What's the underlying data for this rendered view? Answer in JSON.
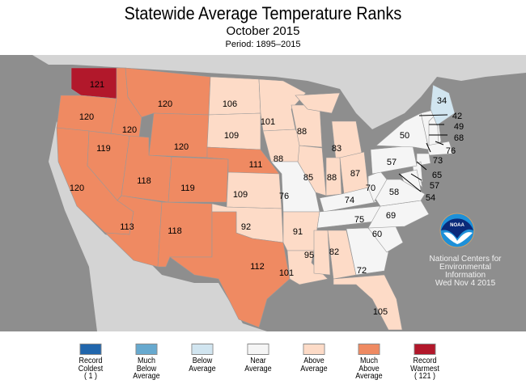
{
  "title": "Statewide Average Temperature Ranks",
  "subtitle": "October 2015",
  "period": "Period: 1895–2015",
  "colors": {
    "ocean": "#8e8e8e",
    "land": "#d4d4d4",
    "record_cold": "#2166ac",
    "much_below": "#67a9cf",
    "below": "#d1e5f0",
    "near": "#f5f5f5",
    "above": "#fddbc7",
    "much_above": "#ef8a62",
    "record_warm": "#b2182b"
  },
  "states": [
    {
      "rank": "121",
      "cat": "record_warm"
    },
    {
      "rank": "120",
      "cat": "much_above"
    },
    {
      "rank": "120",
      "cat": "much_above"
    },
    {
      "rank": "119",
      "cat": "much_above"
    },
    {
      "rank": "120",
      "cat": "much_above"
    },
    {
      "rank": "120",
      "cat": "much_above"
    },
    {
      "rank": "120",
      "cat": "much_above"
    },
    {
      "rank": "118",
      "cat": "much_above"
    },
    {
      "rank": "119",
      "cat": "much_above"
    },
    {
      "rank": "113",
      "cat": "much_above"
    },
    {
      "rank": "118",
      "cat": "much_above"
    },
    {
      "rank": "106",
      "cat": "above"
    },
    {
      "rank": "109",
      "cat": "above"
    },
    {
      "rank": "111",
      "cat": "much_above"
    },
    {
      "rank": "109",
      "cat": "above"
    },
    {
      "rank": "92",
      "cat": "above"
    },
    {
      "rank": "112",
      "cat": "much_above"
    },
    {
      "rank": "101",
      "cat": "above"
    },
    {
      "rank": "88",
      "cat": "above"
    },
    {
      "rank": "76",
      "cat": "near"
    },
    {
      "rank": "91",
      "cat": "above"
    },
    {
      "rank": "101",
      "cat": "above"
    },
    {
      "rank": "88",
      "cat": "above"
    },
    {
      "rank": "85",
      "cat": "above"
    },
    {
      "rank": "83",
      "cat": "above"
    },
    {
      "rank": "88",
      "cat": "above"
    },
    {
      "rank": "87",
      "cat": "above"
    },
    {
      "rank": "74",
      "cat": "near"
    },
    {
      "rank": "75",
      "cat": "near"
    },
    {
      "rank": "95",
      "cat": "above"
    },
    {
      "rank": "82",
      "cat": "above"
    },
    {
      "rank": "72",
      "cat": "near"
    },
    {
      "rank": "105",
      "cat": "above"
    },
    {
      "rank": "60",
      "cat": "near"
    },
    {
      "rank": "69",
      "cat": "near"
    },
    {
      "rank": "58",
      "cat": "near"
    },
    {
      "rank": "70",
      "cat": "near"
    },
    {
      "rank": "57",
      "cat": "near"
    },
    {
      "rank": "50",
      "cat": "near"
    },
    {
      "rank": "34",
      "cat": "below"
    }
  ],
  "northeast_callouts": [
    "42",
    "49",
    "68",
    "76",
    "73",
    "65",
    "57",
    "54"
  ],
  "legend": [
    {
      "label": "Record Coldest",
      "sub": "( 1 )",
      "cat": "record_cold"
    },
    {
      "label": "Much Below Average",
      "sub": "",
      "cat": "much_below"
    },
    {
      "label": "Below Average",
      "sub": "",
      "cat": "below"
    },
    {
      "label": "Near Average",
      "sub": "",
      "cat": "near"
    },
    {
      "label": "Above Average",
      "sub": "",
      "cat": "above"
    },
    {
      "label": "Much Above Average",
      "sub": "",
      "cat": "much_above"
    },
    {
      "label": "Record Warmest",
      "sub": "( 121 )",
      "cat": "record_warm"
    }
  ],
  "logo_text": "NOAA",
  "credit": {
    "line1": "National Centers for",
    "line2": "Environmental",
    "line3": "Information",
    "date": "Wed Nov  4 2015"
  }
}
